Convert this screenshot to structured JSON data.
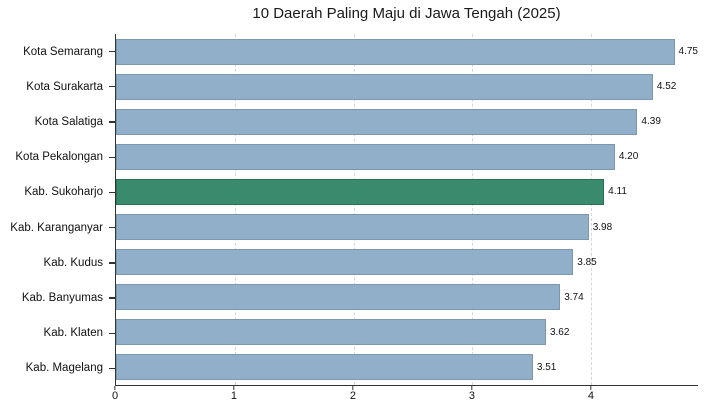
{
  "chart_data": {
    "type": "bar",
    "orientation": "horizontal",
    "title": "10 Daerah Paling Maju di Jawa Tengah (2025)",
    "categories": [
      "Kota Semarang",
      "Kota Surakarta",
      "Kota Salatiga",
      "Kota Pekalongan",
      "Kab. Sukoharjo",
      "Kab. Karanganyar",
      "Kab. Kudus",
      "Kab. Banyumas",
      "Kab. Klaten",
      "Kab. Magelang"
    ],
    "values": [
      4.75,
      4.52,
      4.39,
      4.2,
      4.11,
      3.98,
      3.85,
      3.74,
      3.62,
      3.51
    ],
    "value_labels": [
      "4.75",
      "4.52",
      "4.39",
      "4.20",
      "4.11",
      "3.98",
      "3.85",
      "3.74",
      "3.62",
      "3.51"
    ],
    "highlight_category": "Kab. Sukoharjo",
    "xlim": [
      0,
      4.9
    ],
    "xticks": [
      0,
      1,
      2,
      3,
      4
    ],
    "xtick_labels": [
      "0",
      "1",
      "2",
      "3",
      "4"
    ],
    "grid": "vertical-dashed",
    "legend": "none",
    "colors": {
      "bar": "#92afc9",
      "bar_edge": "#7b98b0",
      "highlight": "#3a8a6d",
      "highlight_edge": "#2d6e56",
      "grid": "#d6d6d6",
      "axis": "#333333",
      "text": "#111111"
    }
  }
}
